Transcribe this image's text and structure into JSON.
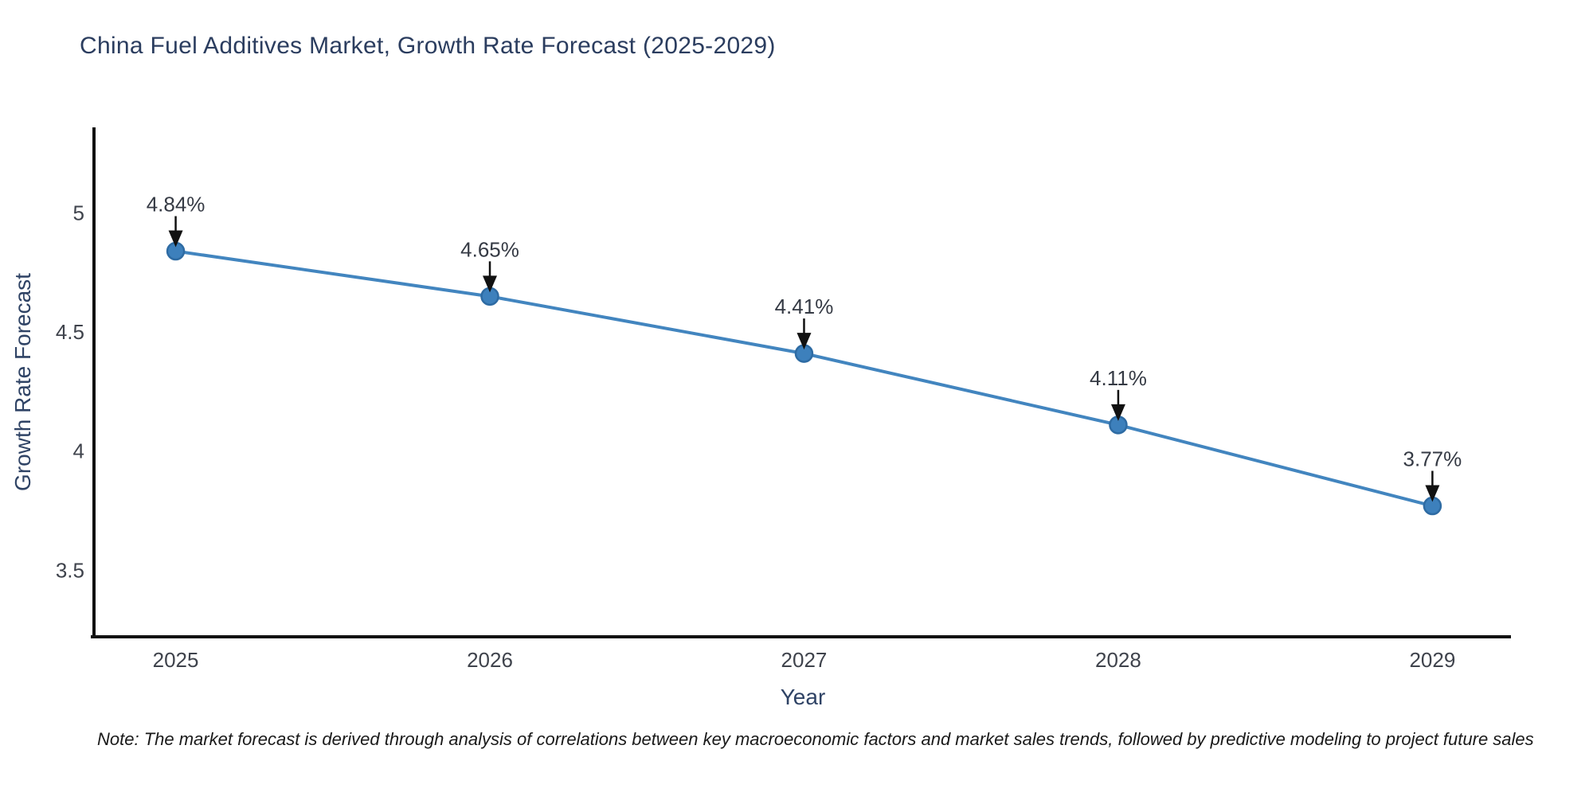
{
  "page": {
    "title": "China Fuel Additives Market, Growth Rate Forecast (2025-2029)",
    "note": "Note: The market forecast is derived through analysis of correlations between key macroeconomic factors and market sales trends, followed by predictive modeling to project future sales"
  },
  "chart_data": {
    "type": "line",
    "title": "China Fuel Additives Market, Growth Rate Forecast (2025-2029)",
    "xlabel": "Year",
    "ylabel": "Growth Rate Forecast",
    "x": [
      2025,
      2026,
      2027,
      2028,
      2029
    ],
    "series": [
      {
        "name": "Growth Rate Forecast",
        "values": [
          4.84,
          4.65,
          4.41,
          4.11,
          3.77
        ]
      }
    ],
    "point_labels": [
      "4.84%",
      "4.65%",
      "4.41%",
      "4.11%",
      "3.77%"
    ],
    "xticks": [
      {
        "value": 2025,
        "label": "2025"
      },
      {
        "value": 2026,
        "label": "2026"
      },
      {
        "value": 2027,
        "label": "2027"
      },
      {
        "value": 2028,
        "label": "2028"
      },
      {
        "value": 2029,
        "label": "2029"
      }
    ],
    "yticks": [
      {
        "value": 3.5,
        "label": "3.5"
      },
      {
        "value": 4,
        "label": "4"
      },
      {
        "value": 4.5,
        "label": "4.5"
      },
      {
        "value": 5,
        "label": "5"
      }
    ],
    "xlim": [
      2024.74,
      2029.25
    ],
    "ylim": [
      3.22,
      5.36
    ],
    "grid": false,
    "legend": "none",
    "annotation_arrows": true,
    "colors": {
      "line": "#4285bf",
      "marker_fill": "#3d80bc",
      "marker_edge": "#2e6ba3",
      "axis_line": "#111111",
      "title_text": "#2b3d5f",
      "axis_title_text": "#2f4365",
      "tick_text": "#3f434c",
      "annotation_text": "#353a44",
      "arrow": "#111111",
      "note_text": "#1a1a1a",
      "background": "#ffffff"
    }
  }
}
